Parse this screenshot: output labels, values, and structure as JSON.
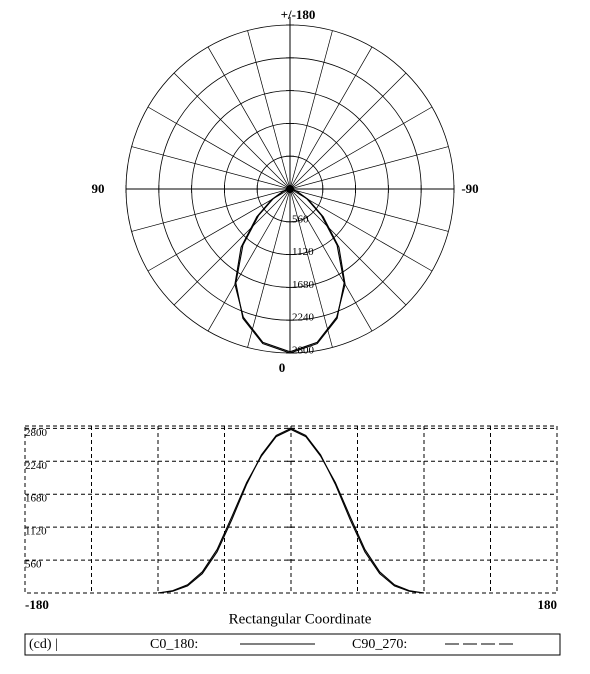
{
  "chart_data": {
    "type": "photometric",
    "angles": [
      -90,
      -80,
      -70,
      -60,
      -50,
      -40,
      -30,
      -20,
      -10,
      0,
      10,
      20,
      30,
      40,
      50,
      60,
      70,
      80,
      90
    ],
    "series": [
      {
        "name": "C0_180:",
        "color": "#000000",
        "dash": "none",
        "values": [
          0,
          30,
          120,
          330,
          700,
          1250,
          1850,
          2350,
          2680,
          2800,
          2680,
          2350,
          1850,
          1250,
          700,
          330,
          120,
          30,
          0
        ]
      },
      {
        "name": "C90_270:",
        "color": "#000000",
        "dash": "14,4",
        "values": [
          0,
          40,
          140,
          360,
          740,
          1300,
          1880,
          2330,
          2660,
          2780,
          2660,
          2330,
          1880,
          1300,
          740,
          360,
          140,
          40,
          0
        ]
      }
    ],
    "polar": {
      "top_label": "+/-180",
      "left_label": "90",
      "right_label": "-90",
      "bottom_label": "0",
      "rlim": [
        0,
        2800
      ],
      "rticks": [
        560,
        1120,
        1680,
        2240,
        2800
      ],
      "spoke_step": 15
    },
    "rect": {
      "title": "Rectangular Coordinate",
      "xlim": [
        -180,
        180
      ],
      "xticks": [
        -180,
        180
      ],
      "xgrid": [
        -135,
        -90,
        -45,
        0,
        45,
        90,
        135
      ],
      "ylim": [
        0,
        2840
      ],
      "yticks": [
        560,
        1120,
        1680,
        2240,
        2800
      ],
      "grid": true
    },
    "legend": {
      "unit": "(cd) |"
    }
  }
}
